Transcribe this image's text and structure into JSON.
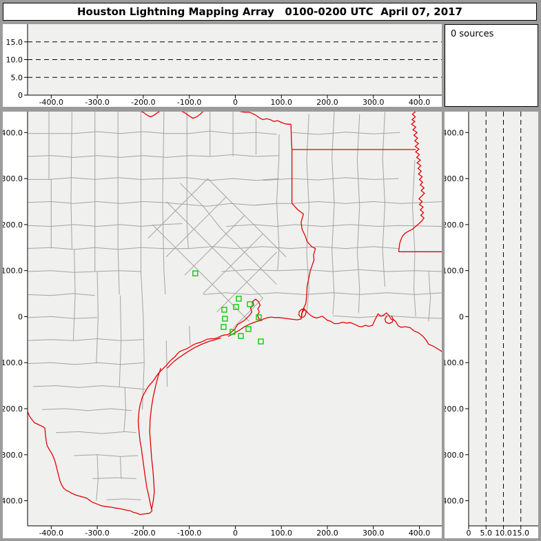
{
  "title": "Houston Lightning Mapping Array   0100-0200 UTC  April 07, 2017",
  "sources_panel": {
    "label": "0 sources",
    "count": 0
  },
  "colors": {
    "frame_gray": "#9b9b9b",
    "panel_white": "#ffffff",
    "plot_bg": "#f0f0ef",
    "county_line": "#a3a3a3",
    "state_line": "#e10000",
    "station_green": "#00d000",
    "axis_black": "#000000"
  },
  "chart_data": [
    {
      "id": "alt_vs_ew",
      "type": "scatter",
      "description": "Altitude (km) vs east-west distance (km), no source points plotted",
      "points": [],
      "x_range": [
        -451,
        453
      ],
      "y_range": [
        0,
        20
      ],
      "x_ticks": [
        [
          -400,
          "-400.0"
        ],
        [
          -300,
          "-300.0"
        ],
        [
          -200,
          "-200.0"
        ],
        [
          -100,
          "-100.0"
        ],
        [
          0,
          "0"
        ],
        [
          100,
          "100.0"
        ],
        [
          200,
          "200.0"
        ],
        [
          300,
          "300.0"
        ],
        [
          400,
          "400.0"
        ]
      ],
      "y_ticks": [
        [
          0,
          "0"
        ],
        [
          5,
          "5.0"
        ],
        [
          10,
          "10.0"
        ],
        [
          15,
          "15.0"
        ]
      ],
      "dashed_alt_lines": [
        5,
        10,
        15
      ],
      "grid": "dashed-horizontal"
    },
    {
      "id": "plan_view_map",
      "type": "scatter",
      "description": "Plan view map, km east-west vs km north-south, LMA network stations shown as green squares; no lightning sources",
      "points": [],
      "x_range": [
        -451,
        453
      ],
      "y_range": [
        -456,
        445
      ],
      "x_ticks": [
        [
          -400,
          "-400.0"
        ],
        [
          -300,
          "-300.0"
        ],
        [
          -200,
          "-200.0"
        ],
        [
          -100,
          "-100.0"
        ],
        [
          0,
          "0"
        ],
        [
          100,
          "100.0"
        ],
        [
          200,
          "200.0"
        ],
        [
          300,
          "300.0"
        ],
        [
          400,
          "400.0"
        ]
      ],
      "y_ticks": [
        [
          400,
          "400.0"
        ],
        [
          300,
          "300.0"
        ],
        [
          200,
          "200.0"
        ],
        [
          100,
          "100.0"
        ],
        [
          0,
          "0"
        ],
        [
          -100,
          "-100.0"
        ],
        [
          -200,
          "-200.0"
        ],
        [
          -300,
          "-300.0"
        ],
        [
          -400,
          "-400.0"
        ]
      ],
      "stations_km": [
        [
          -87,
          94
        ],
        [
          7.5,
          39
        ],
        [
          31.5,
          27
        ],
        [
          1.5,
          21
        ],
        [
          -24,
          15
        ],
        [
          51,
          -1.5
        ],
        [
          -22.5,
          -4.5
        ],
        [
          -25.5,
          -22.5
        ],
        [
          -6,
          -33
        ],
        [
          28.5,
          -27
        ],
        [
          12,
          -42
        ],
        [
          55.5,
          -54
        ]
      ],
      "geometry": {
        "county_lines": [
          "-405,446 -405,298 -400,298 -400,148",
          "-355,446 -357,250 -355,148",
          "-305,446 -305,98",
          "-255,446 -255,148 -252,48",
          "-205,446 -205,98 -200,-2",
          "-155,446 -158,248 -155,98 -152,48",
          "-105,446 -105,200 -102,148",
          "-55,446 -55,348",
          "-5,446 -5,348",
          "45,430 45,352",
          "-453,398 -350,398 -300,402 -250,398 -200,402 -150,398 -100,398 -55,403 -5,398 45,400 90,396",
          "-453,348 -400,350 -350,346 -300,350 -250,346 -200,350 -150,346 -100,350 -55,348 -5,352 45,348 95,350",
          "-453,298 -405,298 -355,302 -305,298 -255,302 -205,298 -155,300 -105,302 -55,296 -5,300 45,296 95,300",
          "-453,248 -400,250 -350,246 -300,250 -250,246 -200,250 -158,248 -110,244 -60,240 -10,246 40,242 90,246",
          "-453,198 -400,196 -350,200 -300,196 -250,200 -205,196 -160,200 -115,202",
          "-453,148 -400,150 -350,146 -305,150 -255,146 -205,150 -155,148 -102,148 -50,152",
          "-453,98 -400,100 -350,96 -305,98 -255,100 -205,98",
          "-453,48 -400,46 -352,50 -305,46",
          "-453,-2 -400,0 -350,-4 -300,-2",
          "-350,146 -348,48 -352,-52",
          "-300,98 -298,-2 -302,-102",
          "-250,46 -248,-52 -252,-152",
          "-200,-2 -198,-102 -202,-202",
          "-150,-52 -148,-152",
          "-100,-20 -98,-62",
          "-453,-52 -400,-50 -350,-52 -300,-48 -250,-52 -200,-50",
          "-453,-102 -400,-100 -348,-104 -298,-100 -248,-104 -198,-100",
          "-440,-152 -390,-150 -340,-154 -290,-150 -240,-154 -195,-158",
          "-420,-202 -370,-200 -320,-204 -270,-200 -225,-204",
          "-390,-252 -340,-250 -290,-254 -240,-250 -215,-252",
          "-350,-302 -300,-300 -250,-304 -212,-302",
          "-310,-352 -260,-350 -215,-352",
          "-280,-398 -240,-396 -205,-398",
          "-300,-300 -298,-352 -302,-400",
          "-250,-304 -248,-352",
          "-240,-154 -238,-202 -242,-250",
          "-150,250 -100,200 -60,160 -20,120 30,70 60,40",
          "-180,200 -130,150 -90,110 -50,70 0,20 30,-10",
          "-120,290 -70,240 -30,190 10,150 60,100 90,70",
          "-60,300 -10,250 30,210 70,170 110,130",
          "-60,300 -110,250 -150,210 -190,170",
          "-20,260 -70,210 -110,170 -150,130",
          "20,220 -30,170 -70,130 -110,90",
          "60,180 10,130 -30,90 -70,50",
          "90,140 40,90 0,50 -40,10",
          "60,40 20,0 -4,-24",
          "95,396 95,348 90,250 95,150 92,100",
          "160,440 155,340 160,240 155,140 160,60 155,10",
          "215,445 210,345 215,245 210,145 215,45 212,5",
          "270,440 265,340 270,240 265,140 270,60 268,8",
          "325,445 320,345 325,245 320,145 325,65",
          "390,340 385,240 390,140 388,60 392,0",
          "420,100 424,40 420,-10",
          "60,296 123,300 180,297 240,302 300,298 355,300",
          "45,242 90,246 123,246 180,250 240,246 300,250 360,246 452,250",
          "-20,196 40,200 90,196 130,200 190,196 250,200 310,196 355,198 452,196",
          "-50,152 0,148 60,152 120,148 180,152 240,148 300,152 355,148",
          "-30,98 30,102 92,100 150,102 212,98 268,102 330,98 390,100 452,98",
          "-70,48 -20,52 30,48 90,52 150,48 212,52 270,48 330,52 392,48 452,52",
          "212,2 270,-2 330,2 390,-2 452,-4",
          "123,400 180,396 240,401 300,397 358,400"
        ],
        "state_lines": [
          "-210,448 -200,444 -192,438 -184,434 -176,438 -168,444 -160,448",
          "-120,448 -110,443 -100,436 -92,431 -84,434 -76,440 -70,446 -64,448",
          "0,448 10,446 20,444 30,444 36,442 44,438 52,432 60,428 68,430 76,428 84,424 92,426 100,422 108,419 115,418 121,418",
          "121,418 122,380 123,363 123,300 123,246",
          "123,363 200,363 280,363 340,363 392,363",
          "392,446 385,440 391,434 384,428 390,424 383,418 392,412 386,406 395,400 388,394 396,388 390,382 398,376 391,370 399,364 392,358 400,352 394,346 402,340 395,334 403,328 397,322 404,316 398,310 406,304 400,298 407,292 402,286 410,280 404,274 411,268 405,262 399,256 406,250 400,244 408,238 402,232 409,226 403,220 410,214 405,208 399,202 392,196 385,190 377,186 370,182 364,176 360,168 357,158 356,150 355,141",
          "355,141 400,141 452,141",
          "123,246 136,232 148,223 143,205 145,190 152,175 156,163 166,152 174,148 170,134 171,123 163,100 156,66 155,45 153,28 147,15 144,6 145,-3"
        ],
        "coast_lines": [
          "452,-78 443,-72 430,-64 420,-60 414,-50 407,-42 398,-35 388,-31 380,-24 370,-22 360,-23 354,-20 348,-10 344,-7 339,-6 333,4 328,8 322,3 316,1 310,6 305,-4 301,-12 298,-19 290,-21 283,-19 275,-22 268,-21 260,-17 250,-13 242,-14 233,-12 224,-15 215,-15 207,-10 200,-8 194,-3 189,1 183,-1 176,-3 170,-1 163,3 158,8 153,13 149,15 145,8 144,0 143,-5 135,-7 125,-6 118,-5 111,-4 103,-3 95,-2 86,-2 78,-1 71,-2 65,-4 61,-5 58,-7 54,-6 51,-4 48,3 52,10 49,17 54,25 50,33 44,38 38,33 40,25 33,19 36,10 31,3 25,-3 20,-8 12,-13 5,-17 -1,-27 -8,-33 -16,-39 -24,-40 -31,-42 -39,-46 -46,-48 -54,-48 -61,-49 -69,-53 -76,-56 -84,-58 -91,-61 -99,-66 -106,-70 -114,-73 -121,-76 -127,-82 -131,-87 -138,-93 -144,-99 -150,-106 -156,-112 -161,-117 -166,-122 -172,-130 -178,-139 -184,-146 -189,-152 -194,-160 -199,-169 -202,-175 -204,-182 -207,-192 -209,-203 -210,-214 -211,-227 -210,-240 -209,-253 -207,-270 -204,-287 -202,-302 -200,-317 -198,-332 -196,-347 -194,-360 -192,-373 -190,-381 -189,-385 -187,-395 -185,-405 -183,-414 -181,-422 -184,-425 -186,-427 -193,-428 -200,-429 -207,-430 -214,-427 -222,-425 -228,-422 -234,-421 -243,-419 -252,-417 -261,-416 -270,-414 -280,-413 -291,-411 -301,-407 -311,-403 -318,-398 -324,-394 -335,-391 -346,-388 -355,-384 -362,-380 -368,-377 -373,-373 -377,-366 -381,-357 -383,-349 -385,-341 -388,-329 -391,-317 -394,-308 -398,-299 -404,-289 -409,-280 -411,-270 -412,-261 -414,-242 -420,-238 -425,-236 -431,-233 -436,-231 -440,-226 -444,-221 -448,-215 -450,-209 -453,-205",
          "-162,-112 -168,-130 -173,-150 -178,-172 -182,-196 -185,-222 -186,-250 -184,-278 -182,-306 -179,-334 -177,-360 -176,-382 -178,-398 -180,-410 -182,-419",
          "-148,-112 -133,-97 -118,-86 -103,-76 -88,-67 -73,-60 -58,-54 -43,-50 -31,-46",
          "-16,-43 -4,-37 8,-30 20,-22 32,-16 42,-12 52,-9 58,-8",
          "143,-2 138,4 139,11 144,16 150,17 154,11 152,3 147,-2",
          "330,2 325,-5 327,-12 334,-15 341,-12 343,-5 339,2"
        ]
      }
    },
    {
      "id": "alt_vs_ns",
      "type": "scatter",
      "description": "North-south distance (km) vs altitude (km), no source points plotted",
      "points": [],
      "x_range": [
        0,
        20
      ],
      "y_range": [
        -456,
        445
      ],
      "x_ticks": [
        [
          0,
          "0"
        ],
        [
          5,
          "5.0"
        ],
        [
          10,
          "10.0"
        ],
        [
          15,
          "15.0"
        ]
      ],
      "y_ticks": [
        [
          400,
          "400.0"
        ],
        [
          300,
          "300.0"
        ],
        [
          200,
          "200.0"
        ],
        [
          100,
          "100.0"
        ],
        [
          0,
          "0"
        ],
        [
          -100,
          "-100.0"
        ],
        [
          -200,
          "-200.0"
        ],
        [
          -300,
          "-300.0"
        ],
        [
          -400,
          "-400.0"
        ]
      ],
      "dashed_alt_lines": [
        5,
        10,
        15
      ],
      "grid": "dashed-vertical"
    }
  ]
}
